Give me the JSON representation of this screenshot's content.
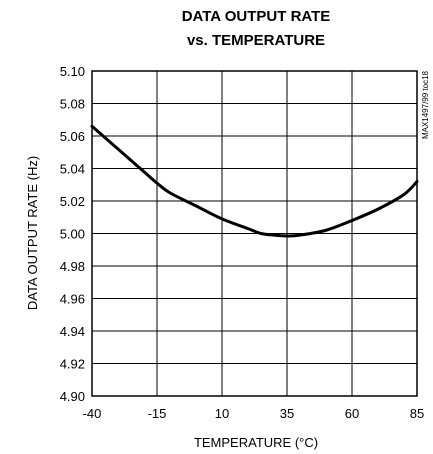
{
  "chart_data": {
    "type": "line",
    "title": "DATA OUTPUT RATE",
    "subtitle": "vs. TEMPERATURE",
    "xlabel": "TEMPERATURE (°C)",
    "ylabel": "DATA OUTPUT RATE (Hz)",
    "figure_id": "MAX1497/99 toc18",
    "xlim": [
      -40,
      85
    ],
    "ylim": [
      4.9,
      5.1
    ],
    "x_ticks": [
      -40,
      -15,
      10,
      35,
      60,
      85
    ],
    "x_tick_labels": [
      "-40",
      "-15",
      "10",
      "35",
      "60",
      "85"
    ],
    "y_ticks": [
      4.9,
      4.92,
      4.94,
      4.96,
      4.98,
      5.0,
      5.02,
      5.04,
      5.06,
      5.08,
      5.1
    ],
    "y_tick_labels": [
      "4.90",
      "4.92",
      "4.94",
      "4.96",
      "4.98",
      "5.00",
      "5.02",
      "5.04",
      "5.06",
      "5.08",
      "5.10"
    ],
    "grid": true,
    "legend": "none",
    "series": [
      {
        "x": [
          -40,
          -30,
          -20,
          -15,
          -10,
          0,
          10,
          20,
          25,
          30,
          35,
          40,
          50,
          60,
          70,
          80,
          85
        ],
        "y": [
          5.066,
          5.052,
          5.038,
          5.031,
          5.025,
          5.017,
          5.009,
          5.003,
          5.0,
          4.999,
          4.9985,
          4.999,
          5.002,
          5.008,
          5.015,
          5.024,
          5.032
        ]
      }
    ],
    "line_color": "#000000"
  }
}
